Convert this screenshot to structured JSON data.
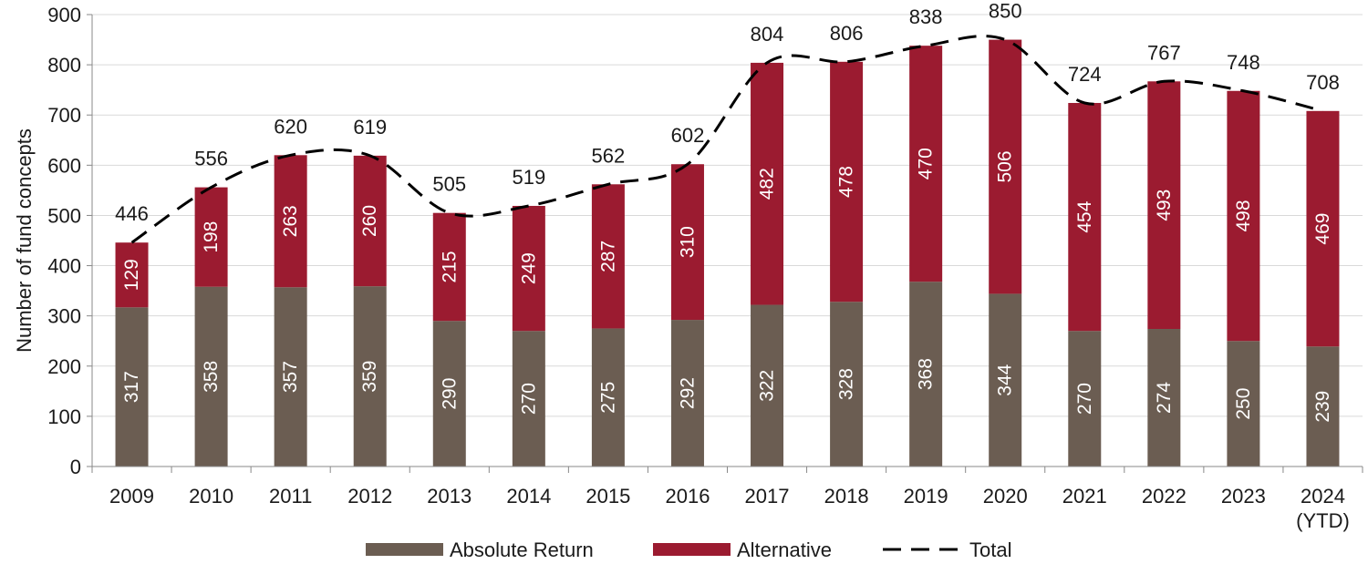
{
  "chart_data": {
    "type": "bar",
    "stacked": true,
    "categories": [
      "2009",
      "2010",
      "2011",
      "2012",
      "2013",
      "2014",
      "2015",
      "2016",
      "2017",
      "2018",
      "2019",
      "2020",
      "2021",
      "2022",
      "2023",
      "2024"
    ],
    "category_sublabels": {
      "2024": "(YTD)"
    },
    "series": [
      {
        "name": "Absolute Return",
        "type": "bar",
        "color": "#6b5d52",
        "values": [
          317,
          358,
          357,
          359,
          290,
          270,
          275,
          292,
          322,
          328,
          368,
          344,
          270,
          274,
          250,
          239
        ]
      },
      {
        "name": "Alternative",
        "type": "bar",
        "color": "#9b1b30",
        "values": [
          129,
          198,
          263,
          260,
          215,
          249,
          287,
          310,
          482,
          478,
          470,
          506,
          454,
          493,
          498,
          469
        ]
      },
      {
        "name": "Total",
        "type": "line",
        "style": "dashed",
        "color": "#000000",
        "values": [
          446,
          556,
          620,
          619,
          505,
          519,
          562,
          602,
          804,
          806,
          838,
          850,
          724,
          767,
          748,
          708
        ]
      }
    ],
    "xlabel": "",
    "ylabel": "Number of fund concepts",
    "ylim": [
      0,
      900
    ],
    "yticks": [
      0,
      100,
      200,
      300,
      400,
      500,
      600,
      700,
      800,
      900
    ],
    "grid": true,
    "legend_position": "bottom"
  }
}
